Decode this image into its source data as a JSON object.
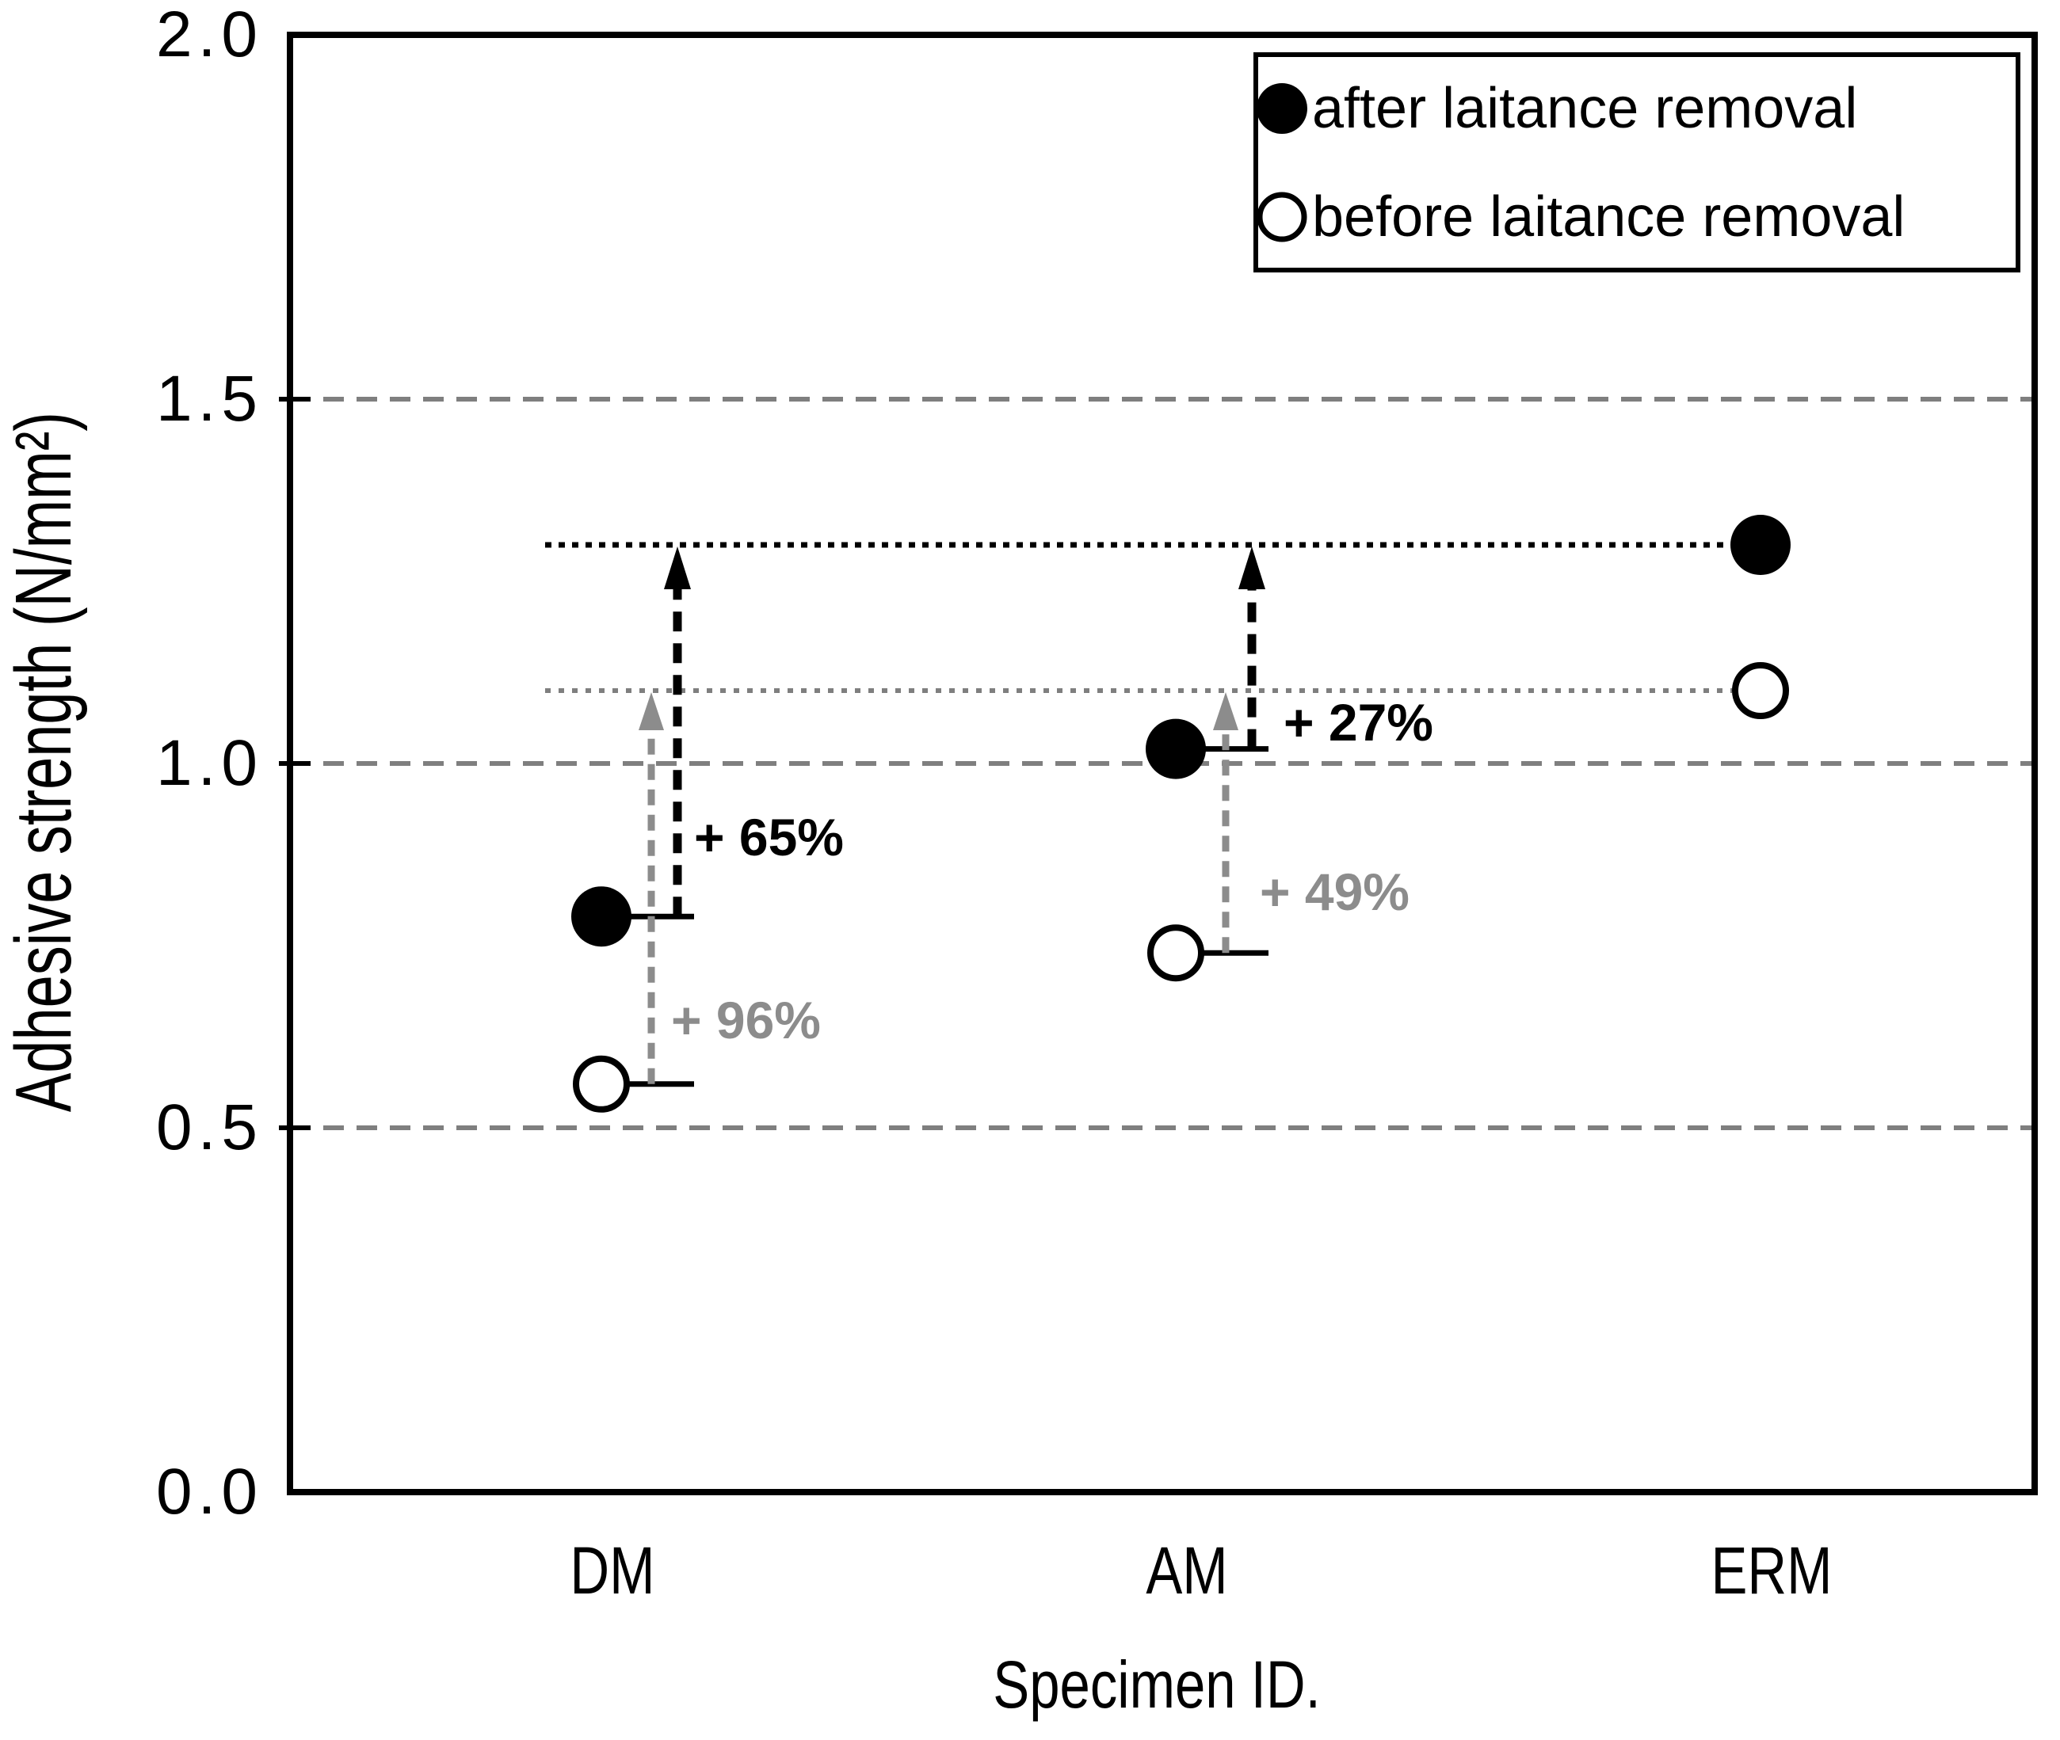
{
  "figure": {
    "background": "#ffffff",
    "ink_color": "#000000",
    "gray_color": "#8c8c8c",
    "grid_color": "#7f7f7f"
  },
  "chart_data": {
    "type": "scatter",
    "title": "",
    "xlabel": "Specimen ID.",
    "ylabel": "Adhesive strength (N/mm²)",
    "categories": [
      "DM",
      "AM",
      "ERM"
    ],
    "ylim": [
      0.0,
      2.0
    ],
    "yticks": [
      "0.0",
      "0.5",
      "1.0",
      "1.5",
      "2.0"
    ],
    "ytick_values": [
      0.0,
      0.5,
      1.0,
      1.5,
      2.0
    ],
    "grid": {
      "on": true,
      "values": [
        0.5,
        1.0,
        1.5
      ],
      "style": "dashed",
      "color": "#7f7f7f"
    },
    "series": [
      {
        "name": "after laitance removal",
        "marker": "filled-circle",
        "color": "#000000",
        "values": [
          0.79,
          1.02,
          1.3
        ]
      },
      {
        "name": "before laitance removal",
        "marker": "open-circle",
        "color": "#000000",
        "values": [
          0.56,
          0.74,
          1.1
        ]
      }
    ],
    "reference_lines": [
      {
        "value": 1.3,
        "style": "dotted",
        "color": "#000000"
      },
      {
        "value": 1.1,
        "style": "dotted",
        "color": "#7f7f7f"
      }
    ],
    "annotations": [
      {
        "text": "+ 65%",
        "color": "#000000",
        "category": "DM",
        "series": "after laitance removal",
        "from_value": 0.79,
        "to_value": 1.3
      },
      {
        "text": "+ 96%",
        "color": "#8c8c8c",
        "category": "DM",
        "series": "before laitance removal",
        "from_value": 0.56,
        "to_value": 1.1
      },
      {
        "text": "+ 27%",
        "color": "#000000",
        "category": "AM",
        "series": "after laitance removal",
        "from_value": 1.02,
        "to_value": 1.3
      },
      {
        "text": "+ 49%",
        "color": "#8c8c8c",
        "category": "AM",
        "series": "before laitance removal",
        "from_value": 0.74,
        "to_value": 1.1
      }
    ],
    "legend": {
      "position": "top-right",
      "entries": [
        "after laitance removal",
        "before laitance removal"
      ]
    }
  }
}
